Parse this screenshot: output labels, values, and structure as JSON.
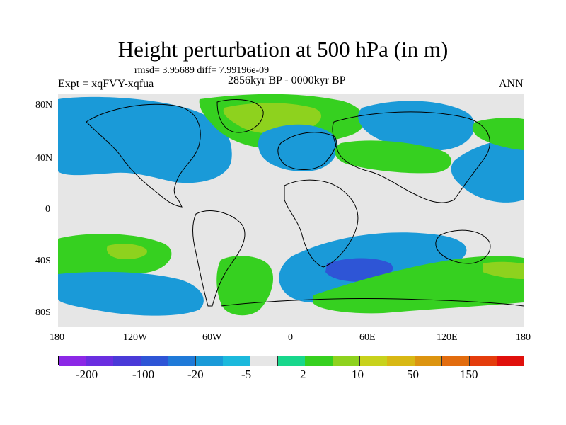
{
  "title": "Height perturbation at 500 hPa (in m)",
  "stats": "rmsd= 3.95689 diff= 7.99196e-09",
  "experiment": "Expt = xqFVY-xqfua",
  "period": "2856kyr BP - 0000kyr BP",
  "season": "ANN",
  "axes": {
    "lat_ticks": [
      "80N",
      "40N",
      "0",
      "40S",
      "80S"
    ],
    "lon_ticks": [
      "180",
      "120W",
      "60W",
      "0",
      "60E",
      "120E",
      "180"
    ]
  },
  "colorbar": {
    "colors": [
      "#8c28e6",
      "#6a2ee0",
      "#4a3ad8",
      "#2e55d6",
      "#1f7ad8",
      "#1a9ad8",
      "#1cb9dc",
      "#e6e6e6",
      "#18d78c",
      "#36d020",
      "#8ed21e",
      "#c8d21c",
      "#d8b814",
      "#dc9410",
      "#e26c0e",
      "#e43c0c",
      "#e0100c"
    ],
    "labels": [
      "-200",
      "-100",
      "-20",
      "-5",
      "2",
      "10",
      "50",
      "150"
    ]
  },
  "regions": [
    {
      "name": "north-atlantic-positive",
      "level": "30",
      "color": "#8ed21e"
    },
    {
      "name": "north-atlantic-positive-outer",
      "level": "10",
      "color": "#36d020"
    },
    {
      "name": "europe-negative",
      "level": "-10",
      "color": "#1a9ad8"
    },
    {
      "name": "north-pacific-negative",
      "level": "-10",
      "color": "#1a9ad8"
    },
    {
      "name": "southern-ocean-negative",
      "level": "-10",
      "color": "#1a9ad8"
    },
    {
      "name": "south-pacific-positive",
      "level": "10",
      "color": "#36d020"
    },
    {
      "name": "antarctic-rim-positive",
      "level": "10",
      "color": "#36d020"
    }
  ]
}
